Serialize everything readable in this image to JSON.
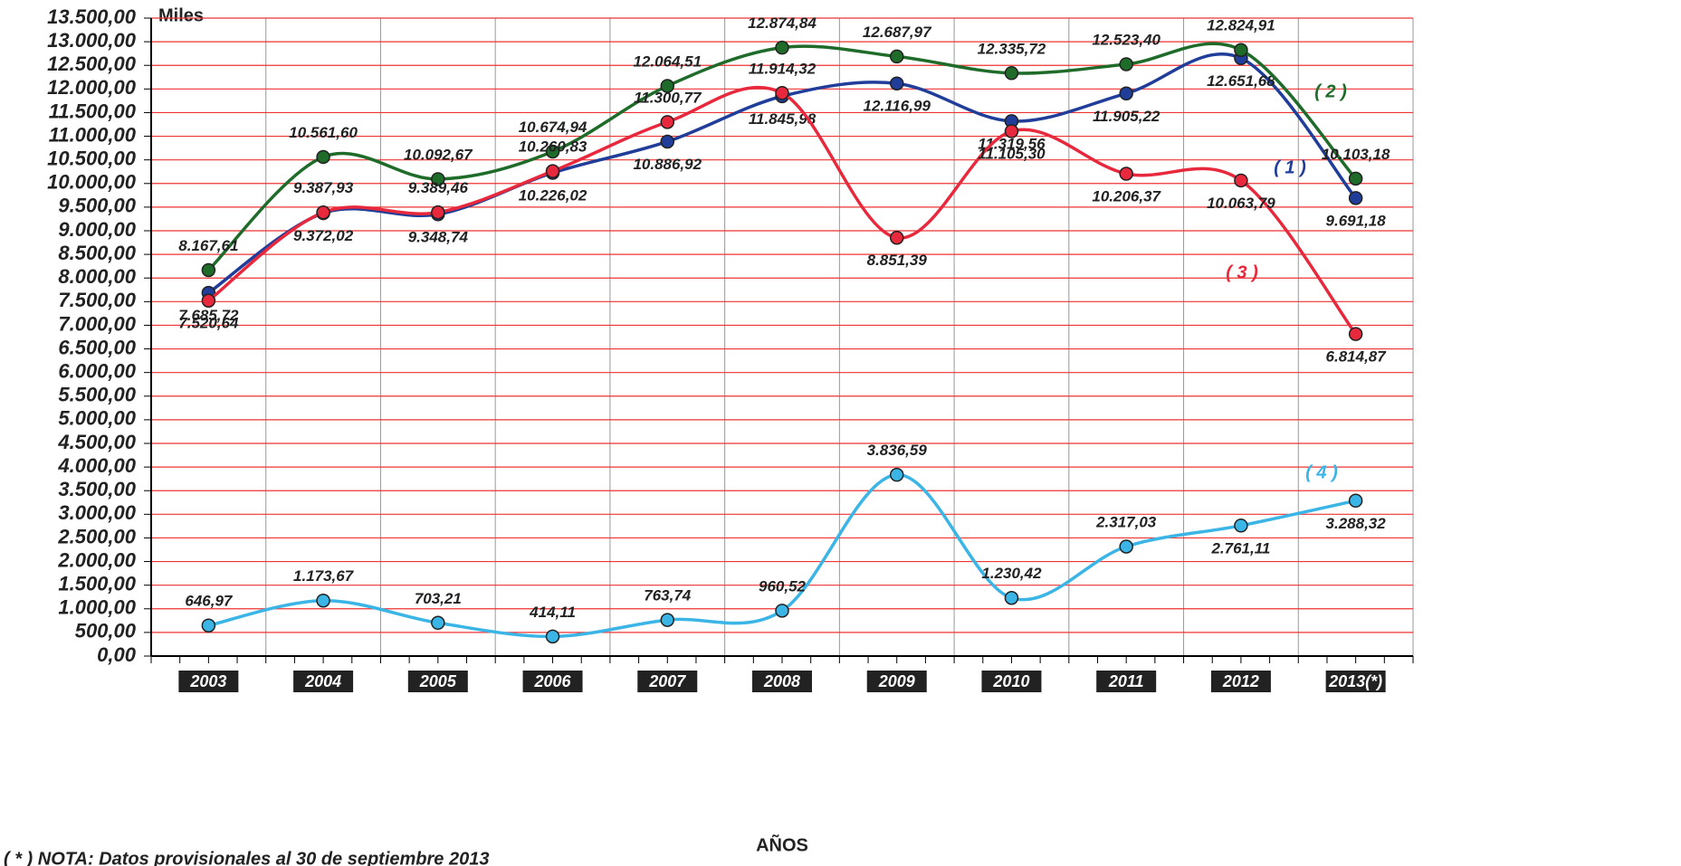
{
  "chart_data": {
    "type": "line",
    "y_unit": "Miles",
    "x_label": "AÑOS",
    "note": "( * ) NOTA: Datos provisionales al 30 de septiembre 2013",
    "categories": [
      "2003",
      "2004",
      "2005",
      "2006",
      "2007",
      "2008",
      "2009",
      "2010",
      "2011",
      "2012",
      "2013(*)"
    ],
    "ylim": [
      0,
      13500
    ],
    "yticks": [
      {
        "value": 0,
        "label": "0,00"
      },
      {
        "value": 500,
        "label": "500,00"
      },
      {
        "value": 1000,
        "label": "1.000,00"
      },
      {
        "value": 1500,
        "label": "1.500,00"
      },
      {
        "value": 2000,
        "label": "2.000,00"
      },
      {
        "value": 2500,
        "label": "2.500,00"
      },
      {
        "value": 3000,
        "label": "3.000,00"
      },
      {
        "value": 3500,
        "label": "3.500,00"
      },
      {
        "value": 4000,
        "label": "4.000,00"
      },
      {
        "value": 4500,
        "label": "4.500,00"
      },
      {
        "value": 5000,
        "label": "5.000,00"
      },
      {
        "value": 5500,
        "label": "5.500,00"
      },
      {
        "value": 6000,
        "label": "6.000,00"
      },
      {
        "value": 6500,
        "label": "6.500,00"
      },
      {
        "value": 7000,
        "label": "7.000,00"
      },
      {
        "value": 7500,
        "label": "7.500,00"
      },
      {
        "value": 8000,
        "label": "8.000,00"
      },
      {
        "value": 8500,
        "label": "8.500,00"
      },
      {
        "value": 9000,
        "label": "9.000,00"
      },
      {
        "value": 9500,
        "label": "9.500,00"
      },
      {
        "value": 10000,
        "label": "10.000,00"
      },
      {
        "value": 10500,
        "label": "10.500,00"
      },
      {
        "value": 11000,
        "label": "11.000,00"
      },
      {
        "value": 11500,
        "label": "11.500,00"
      },
      {
        "value": 12000,
        "label": "12.000,00"
      },
      {
        "value": 12500,
        "label": "12.500,00"
      },
      {
        "value": 13000,
        "label": "13.000,00"
      },
      {
        "value": 13500,
        "label": "13.500,00"
      }
    ],
    "grid": true,
    "series": [
      {
        "name": "( 1 )",
        "color": "#1f3d99",
        "values": [
          7685.72,
          9372.02,
          9348.74,
          10226.02,
          10886.92,
          11845.98,
          12116.99,
          11319.56,
          11905.22,
          12651.68,
          9691.18
        ],
        "value_labels": [
          "7.685,72",
          "9.372,02",
          "9.348,74",
          "10.226,02",
          "10.886,92",
          "11.845,98",
          "12.116,99",
          "11.319,56",
          "11.905,22",
          "12.651,68",
          "9.691,18"
        ]
      },
      {
        "name": "( 2 )",
        "color": "#1e6b2a",
        "values": [
          8167.61,
          10561.6,
          10092.67,
          10674.94,
          12064.51,
          12874.84,
          12687.97,
          12335.72,
          12523.4,
          12824.91,
          10103.18
        ],
        "value_labels": [
          "8.167,61",
          "10.561,60",
          "10.092,67",
          "10.674,94",
          "12.064,51",
          "12.874,84",
          "12.687,97",
          "12.335,72",
          "12.523,40",
          "12.824,91",
          "10.103,18"
        ]
      },
      {
        "name": "( 3 )",
        "color": "#e8283c",
        "values": [
          7520.64,
          9387.93,
          9389.46,
          10260.83,
          11300.77,
          11914.32,
          8851.39,
          11105.3,
          10206.37,
          10063.79,
          6814.87
        ],
        "value_labels": [
          "7.520,64",
          "9.387,93",
          "9.389,46",
          "10.260,83",
          "11.300,77",
          "11.914,32",
          "8.851,39",
          "11.105,30",
          "10.206,37",
          "10.063,79",
          "6.814,87"
        ]
      },
      {
        "name": "( 4 )",
        "color": "#3bb4e6",
        "values": [
          646.97,
          1173.67,
          703.21,
          414.11,
          763.74,
          960.52,
          3836.59,
          1230.42,
          2317.03,
          2761.11,
          3288.32
        ],
        "value_labels": [
          "646,97",
          "1.173,67",
          "703,21",
          "414,11",
          "763,74",
          "960,52",
          "3.836,59",
          "1.230,42",
          "2.317,03",
          "2.761,11",
          "3.288,32"
        ]
      }
    ]
  }
}
